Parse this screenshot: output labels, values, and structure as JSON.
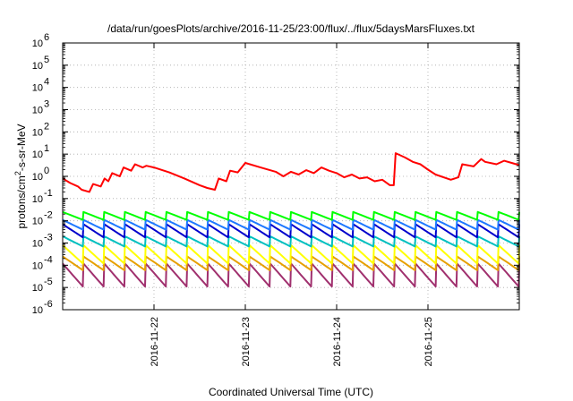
{
  "chart_data": {
    "type": "line",
    "title": "/data/run/goesPlots/archive/2016-11-25/23:00/flux/../flux/5daysMarsFluxes.txt",
    "xlabel": "Coordinated Universal Time (UTC)",
    "ylabel": {
      "base": "protons/cm",
      "sup": "2",
      "rest": "-s-sr-MeV"
    },
    "y_scale": "log",
    "xlim": [
      "2016-11-21T00:00",
      "2016-11-26T00:00"
    ],
    "ylim": [
      1e-06,
      1000000.0
    ],
    "grid": true,
    "x_ticks": [
      {
        "x": "2016-11-22T00:00",
        "label": "2016-11-22"
      },
      {
        "x": "2016-11-23T00:00",
        "label": "2016-11-23"
      },
      {
        "x": "2016-11-24T00:00",
        "label": "2016-11-24"
      },
      {
        "x": "2016-11-25T00:00",
        "label": "2016-11-25"
      }
    ],
    "y_ticks": [
      {
        "value": 1e-06,
        "base": "10",
        "exp": "-6"
      },
      {
        "value": 1e-05,
        "base": "10",
        "exp": "-5"
      },
      {
        "value": 0.0001,
        "base": "10",
        "exp": "-4"
      },
      {
        "value": 0.001,
        "base": "10",
        "exp": "-3"
      },
      {
        "value": 0.01,
        "base": "10",
        "exp": "-2"
      },
      {
        "value": 0.1,
        "base": "10",
        "exp": "-1"
      },
      {
        "value": 1,
        "base": "10",
        "exp": "0"
      },
      {
        "value": 10,
        "base": "10",
        "exp": "1"
      },
      {
        "value": 100,
        "base": "10",
        "exp": "2"
      },
      {
        "value": 1000.0,
        "base": "10",
        "exp": "3"
      },
      {
        "value": 10000.0,
        "base": "10",
        "exp": "4"
      },
      {
        "value": 100000.0,
        "base": "10",
        "exp": "5"
      },
      {
        "value": 1000000.0,
        "base": "10",
        "exp": "6"
      }
    ],
    "series": [
      {
        "color": "#ff0000",
        "x": [
          "2016-11-21T00:00",
          "2016-11-21T02:00",
          "2016-11-21T04:00",
          "2016-11-21T05:00",
          "2016-11-21T07:00",
          "2016-11-21T08:00",
          "2016-11-21T10:00",
          "2016-11-21T11:00",
          "2016-11-21T12:00",
          "2016-11-21T13:00",
          "2016-11-21T15:00",
          "2016-11-21T16:00",
          "2016-11-21T18:00",
          "2016-11-21T19:00",
          "2016-11-21T21:00",
          "2016-11-21T22:00",
          "2016-11-22T00:00",
          "2016-11-22T04:00",
          "2016-11-22T08:00",
          "2016-11-22T12:00",
          "2016-11-22T14:00",
          "2016-11-22T16:00",
          "2016-11-22T17:00",
          "2016-11-22T19:00",
          "2016-11-22T20:00",
          "2016-11-22T22:00",
          "2016-11-23T00:00",
          "2016-11-23T04:00",
          "2016-11-23T08:00",
          "2016-11-23T10:00",
          "2016-11-23T12:00",
          "2016-11-23T14:00",
          "2016-11-23T16:00",
          "2016-11-23T18:00",
          "2016-11-23T20:00",
          "2016-11-23T22:00",
          "2016-11-24T00:00",
          "2016-11-24T02:00",
          "2016-11-24T04:00",
          "2016-11-24T06:00",
          "2016-11-24T08:00",
          "2016-11-24T10:00",
          "2016-11-24T12:00",
          "2016-11-24T14:00",
          "2016-11-24T15:00",
          "2016-11-24T15:30",
          "2016-11-24T18:00",
          "2016-11-24T20:00",
          "2016-11-24T22:00",
          "2016-11-25T00:00",
          "2016-11-25T02:00",
          "2016-11-25T06:00",
          "2016-11-25T08:00",
          "2016-11-25T09:00",
          "2016-11-25T12:00",
          "2016-11-25T14:00",
          "2016-11-25T15:00",
          "2016-11-25T18:00",
          "2016-11-25T20:00",
          "2016-11-25T22:00",
          "2016-11-26T00:00"
        ],
        "y": [
          0.8,
          0.5,
          0.35,
          0.25,
          0.2,
          0.45,
          0.35,
          0.8,
          0.6,
          1.4,
          1,
          2.5,
          1.8,
          3.5,
          2.5,
          3,
          2.5,
          1.5,
          0.8,
          0.4,
          0.3,
          0.25,
          0.8,
          0.6,
          1.8,
          1.5,
          4,
          2.5,
          1.6,
          1,
          1.6,
          1.2,
          1.9,
          1.4,
          2.5,
          1.8,
          1.4,
          0.9,
          1.2,
          0.8,
          0.9,
          0.6,
          0.7,
          0.4,
          0.4,
          11,
          7,
          4.5,
          3.5,
          2,
          1.2,
          0.7,
          0.9,
          3.5,
          2.8,
          6,
          4.5,
          3.5,
          5,
          4,
          3.2
        ]
      },
      {
        "color": "#00ff00",
        "cycles": 22,
        "high": 0.025,
        "low": 0.011,
        "x_start": "2016-11-21T00:00",
        "x_end": "2016-11-26T00:00"
      },
      {
        "color": "#1e78ff",
        "cycles": 22,
        "high": 0.011,
        "low": 0.004,
        "x_start": "2016-11-21T00:00",
        "x_end": "2016-11-26T00:00"
      },
      {
        "color": "#0000cc",
        "cycles": 22,
        "high": 0.007,
        "low": 0.0018,
        "x_start": "2016-11-21T00:00",
        "x_end": "2016-11-26T00:00"
      },
      {
        "color": "#00c0c0",
        "cycles": 22,
        "high": 0.002,
        "low": 0.0007,
        "x_start": "2016-11-21T00:00",
        "x_end": "2016-11-26T00:00"
      },
      {
        "color": "#ffff00",
        "cycles": 22,
        "high": 0.0008,
        "low": 0.00012,
        "x_start": "2016-11-21T00:00",
        "x_end": "2016-11-26T00:00"
      },
      {
        "color": "#e6a000",
        "cycles": 22,
        "high": 0.00025,
        "low": 6e-05,
        "x_start": "2016-11-21T00:00",
        "x_end": "2016-11-26T00:00"
      },
      {
        "color": "#a0306e",
        "cycles": 22,
        "high": 0.00012,
        "low": 1.1e-05,
        "x_start": "2016-11-21T00:00",
        "x_end": "2016-11-26T00:00"
      }
    ]
  }
}
